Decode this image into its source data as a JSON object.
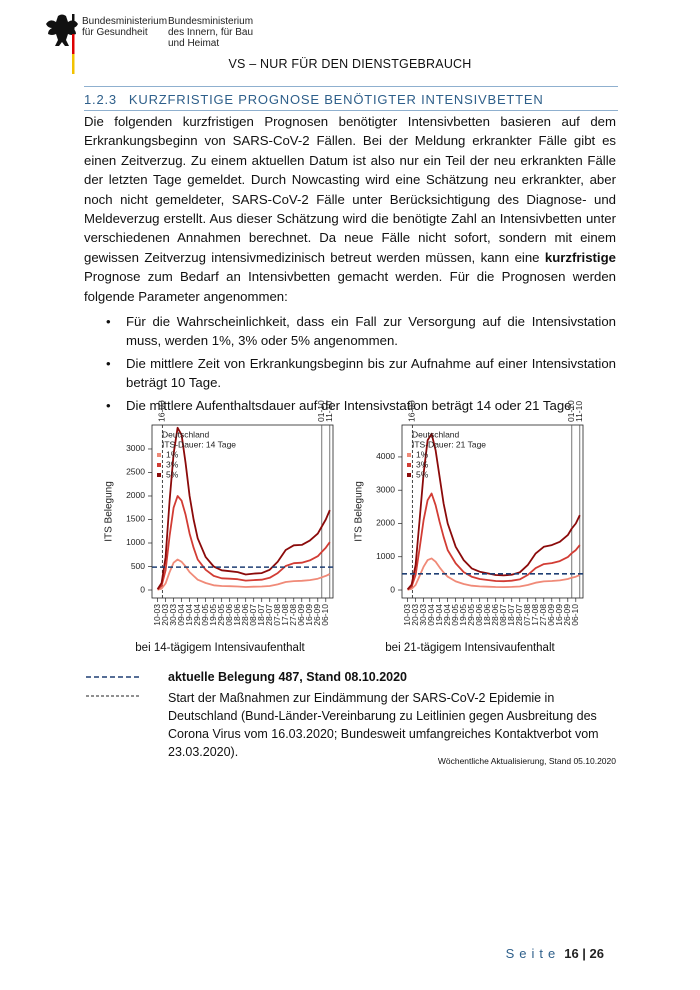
{
  "header": {
    "ministry_1": [
      "Bundesministerium",
      "für Gesundheit"
    ],
    "ministry_2": [
      "Bundesministerium",
      "des Innern, für Bau",
      "und Heimat"
    ],
    "classification": "VS – NUR FÜR DEN DIENSTGEBRAUCH"
  },
  "section": {
    "number": "1.2.3",
    "title": "KURZFRISTIGE PROGNOSE BENÖTIGTER INTENSIVBETTEN"
  },
  "paragraph": [
    "Die folgenden kurzfristigen Prognosen benötigter Intensivbetten basieren auf dem Erkrankungsbeginn von SARS-CoV-2 Fällen.  Bei der Meldung erkrankter Fälle gibt es einen Zeitverzug. Zu einem aktuellen Datum ist also nur ein Teil der neu erkrankten Fälle der letzten Tage gemeldet. Durch Nowcasting wird eine Schätzung neu erkrankter, aber noch nicht gemeldeter, SARS-CoV-2 Fälle unter Berücksichtigung des Diagnose- und Meldeverzug erstellt. Aus dieser Schätzung wird die benötigte Zahl an Intensivbetten unter verschiedenen Annahmen berechnet. Da neue Fälle nicht sofort, sondern mit einem gewissen Zeitverzug intensivmedizinisch betreut werden müssen, kann eine ",
    "kurzfristige",
    " Prognose zum Bedarf an Intensivbetten gemacht werden. Für die Prognosen werden folgende Parameter angenommen:"
  ],
  "bullets": [
    "Für die Wahrscheinlichkeit, dass ein Fall zur Versorgung auf die Intensivstation muss, werden 1%, 3% oder 5% angenommen.",
    "Die mittlere Zeit von Erkrankungsbeginn bis zur Aufnahme auf einer Intensivstation beträgt 10 Tage.",
    "Die mittlere Aufenthaltsdauer auf der Intensivstation beträgt 14 oder 21 Tage."
  ],
  "chart_data": [
    {
      "type": "line",
      "ylabel": "ITS Belegung",
      "annotations": [
        "Deutschland",
        "ITS-Dauer: 14 Tage"
      ],
      "x": [
        "10-03",
        "15-03",
        "20-03",
        "25-03",
        "30-03",
        "04-04",
        "09-04",
        "14-04",
        "19-04",
        "24-04",
        "29-04",
        "09-05",
        "19-05",
        "29-05",
        "08-06",
        "18-06",
        "28-06",
        "08-07",
        "18-07",
        "28-07",
        "07-08",
        "17-08",
        "27-08",
        "06-09",
        "16-09",
        "26-09",
        "01-10",
        "06-10",
        "11-10"
      ],
      "series": [
        {
          "name": "1%",
          "color": "#f08a78",
          "values": [
            5,
            30,
            140,
            380,
            580,
            650,
            600,
            500,
            380,
            300,
            220,
            150,
            100,
            85,
            80,
            75,
            65,
            70,
            75,
            85,
            120,
            170,
            190,
            195,
            210,
            240,
            270,
            300,
            340
          ]
        },
        {
          "name": "3%",
          "color": "#d23c34",
          "values": [
            10,
            90,
            420,
            1150,
            1750,
            2000,
            1900,
            1600,
            1200,
            900,
            650,
            430,
            300,
            250,
            240,
            230,
            200,
            210,
            220,
            260,
            360,
            510,
            570,
            580,
            630,
            720,
            810,
            900,
            1020
          ]
        },
        {
          "name": "5%",
          "color": "#8b0a0a",
          "values": [
            20,
            150,
            700,
            1900,
            2900,
            3450,
            3300,
            2700,
            2000,
            1500,
            1100,
            700,
            500,
            420,
            400,
            380,
            330,
            350,
            360,
            430,
            600,
            850,
            950,
            960,
            1050,
            1200,
            1350,
            1500,
            1700
          ]
        }
      ],
      "xlim": [
        "03-03",
        "15-10"
      ],
      "ylim": [
        -170,
        3510
      ],
      "yticks": [
        0,
        500,
        1000,
        1500,
        2000,
        2500,
        3000
      ],
      "xticks": [
        "10-03",
        "20-03",
        "30-03",
        "09-04",
        "19-04",
        "29-04",
        "09-05",
        "19-05",
        "29-05",
        "08-06",
        "18-06",
        "28-06",
        "08-07",
        "18-07",
        "28-07",
        "07-08",
        "17-08",
        "27-08",
        "06-09",
        "16-09",
        "26-09",
        "06-10"
      ],
      "vlines": [
        "16-03",
        "01-10",
        "11-10"
      ],
      "hline": 487,
      "hline_color": "#1f3f73"
    },
    {
      "type": "line",
      "ylabel": "ITS Belegung",
      "annotations": [
        "Deutschland",
        "ITS-Dauer: 21 Tage"
      ],
      "x": [
        "10-03",
        "15-03",
        "20-03",
        "25-03",
        "30-03",
        "04-04",
        "09-04",
        "14-04",
        "19-04",
        "24-04",
        "29-04",
        "09-05",
        "19-05",
        "29-05",
        "08-06",
        "18-06",
        "28-06",
        "08-07",
        "18-07",
        "28-07",
        "07-08",
        "17-08",
        "27-08",
        "06-09",
        "16-09",
        "26-09",
        "01-10",
        "06-10",
        "11-10"
      ],
      "series": [
        {
          "name": "1%",
          "color": "#f08a78",
          "values": [
            5,
            35,
            150,
            420,
            700,
            900,
            950,
            850,
            680,
            530,
            400,
            260,
            180,
            130,
            110,
            100,
            90,
            88,
            93,
            107,
            150,
            220,
            260,
            270,
            290,
            330,
            370,
            400,
            450
          ]
        },
        {
          "name": "3%",
          "color": "#d23c34",
          "values": [
            10,
            100,
            450,
            1250,
            2100,
            2700,
            2900,
            2550,
            2050,
            1600,
            1200,
            800,
            540,
            400,
            330,
            300,
            270,
            265,
            280,
            320,
            450,
            660,
            780,
            810,
            870,
            990,
            1110,
            1200,
            1350
          ]
        },
        {
          "name": "5%",
          "color": "#8b0a0a",
          "values": [
            20,
            160,
            750,
            2100,
            3500,
            4500,
            4700,
            4200,
            3400,
            2600,
            2000,
            1300,
            900,
            650,
            550,
            500,
            450,
            440,
            460,
            530,
            750,
            1100,
            1300,
            1350,
            1450,
            1650,
            1850,
            2000,
            2250
          ]
        }
      ],
      "xlim": [
        "03-03",
        "15-10"
      ],
      "ylim": [
        -240,
        4960
      ],
      "yticks": [
        0,
        1000,
        2000,
        3000,
        4000
      ],
      "xticks": [
        "10-03",
        "20-03",
        "30-03",
        "09-04",
        "19-04",
        "29-04",
        "09-05",
        "19-05",
        "29-05",
        "08-06",
        "18-06",
        "28-06",
        "08-07",
        "18-07",
        "28-07",
        "07-08",
        "17-08",
        "27-08",
        "06-09",
        "16-09",
        "26-09",
        "06-10"
      ],
      "vlines": [
        "16-03",
        "01-10",
        "11-10"
      ],
      "hline": 487,
      "hline_color": "#1f3f73"
    }
  ],
  "captions": [
    "bei 14-tägigem Intensivaufenthalt",
    "bei 21-tägigem Intensivaufenthalt"
  ],
  "legend": [
    "aktuelle Belegung 487, Stand 08.10.2020",
    "Start der Maßnahmen zur Eindämmung der SARS-CoV-2 Epidemie in Deutschland (Bund-Länder-Vereinbarung zu Leitlinien gegen Ausbreitung des Corona Virus vom 16.03.2020; Bundesweit umfangreiches Kontaktverbot vom 23.03.2020)."
  ],
  "footnote": "Wöchentliche Aktualisierung, Stand 05.10.2020",
  "page": {
    "label": "Seite",
    "number": "16 | 26"
  }
}
